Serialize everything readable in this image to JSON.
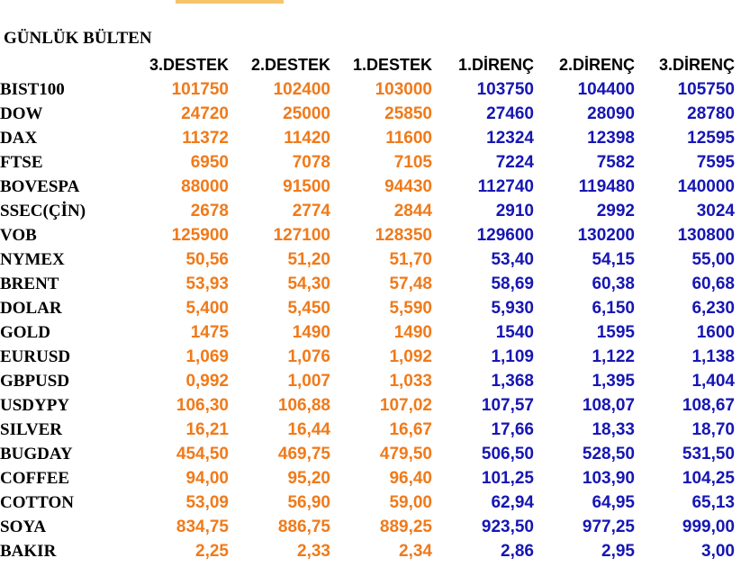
{
  "title": "GÜNLÜK BÜLTEN",
  "colors": {
    "support": "#f07a1a",
    "resistance": "#1616b4",
    "text": "#000000"
  },
  "columns": [
    "3.DESTEK",
    "2.DESTEK",
    "1.DESTEK",
    "1.DİRENÇ",
    "2.DİRENÇ",
    "3.DİRENÇ"
  ],
  "rows": [
    {
      "name": "BIST100",
      "values": [
        "101750",
        "102400",
        "103000",
        "103750",
        "104400",
        "105750"
      ]
    },
    {
      "name": "DOW",
      "values": [
        "24720",
        "25000",
        "25850",
        "27460",
        "28090",
        "28780"
      ]
    },
    {
      "name": "DAX",
      "values": [
        "11372",
        "11420",
        "11600",
        "12324",
        "12398",
        "12595"
      ]
    },
    {
      "name": "FTSE",
      "values": [
        "6950",
        "7078",
        "7105",
        "7224",
        "7582",
        "7595"
      ]
    },
    {
      "name": "BOVESPA",
      "values": [
        "88000",
        "91500",
        "94430",
        "112740",
        "119480",
        "140000"
      ]
    },
    {
      "name": "SSEC(ÇİN)",
      "values": [
        "2678",
        "2774",
        "2844",
        "2910",
        "2992",
        "3024"
      ]
    },
    {
      "name": "VOB",
      "values": [
        "125900",
        "127100",
        "128350",
        "129600",
        "130200",
        "130800"
      ]
    },
    {
      "name": "NYMEX",
      "values": [
        "50,56",
        "51,20",
        "51,70",
        "53,40",
        "54,15",
        "55,00"
      ]
    },
    {
      "name": "BRENT",
      "values": [
        "53,93",
        "54,30",
        "57,48",
        "58,69",
        "60,38",
        "60,68"
      ]
    },
    {
      "name": "DOLAR",
      "values": [
        "5,400",
        "5,450",
        "5,590",
        "5,930",
        "6,150",
        "6,230"
      ]
    },
    {
      "name": "GOLD",
      "values": [
        "1475",
        "1490",
        "1490",
        "1540",
        "1595",
        "1600"
      ]
    },
    {
      "name": "EURUSD",
      "values": [
        "1,069",
        "1,076",
        "1,092",
        "1,109",
        "1,122",
        "1,138"
      ]
    },
    {
      "name": "GBPUSD",
      "values": [
        "0,992",
        "1,007",
        "1,033",
        "1,368",
        "1,395",
        "1,404"
      ]
    },
    {
      "name": "USDYPY",
      "values": [
        "106,30",
        "106,88",
        "107,02",
        "107,57",
        "108,07",
        "108,67"
      ]
    },
    {
      "name": "SILVER",
      "values": [
        "16,21",
        "16,44",
        "16,67",
        "17,66",
        "18,33",
        "18,70"
      ]
    },
    {
      "name": "BUGDAY",
      "values": [
        "454,50",
        "469,75",
        "479,50",
        "506,50",
        "528,50",
        "531,50"
      ]
    },
    {
      "name": "COFFEE",
      "values": [
        "94,00",
        "95,20",
        "96,40",
        "101,25",
        "103,90",
        "104,25"
      ]
    },
    {
      "name": "COTTON",
      "values": [
        "53,09",
        "56,90",
        "59,00",
        "62,94",
        "64,95",
        "65,13"
      ]
    },
    {
      "name": "SOYA",
      "values": [
        "834,75",
        "886,75",
        "889,25",
        "923,50",
        "977,25",
        "999,00"
      ]
    },
    {
      "name": "BAKIR",
      "values": [
        "2,25",
        "2,33",
        "2,34",
        "2,86",
        "2,95",
        "3,00"
      ]
    }
  ]
}
